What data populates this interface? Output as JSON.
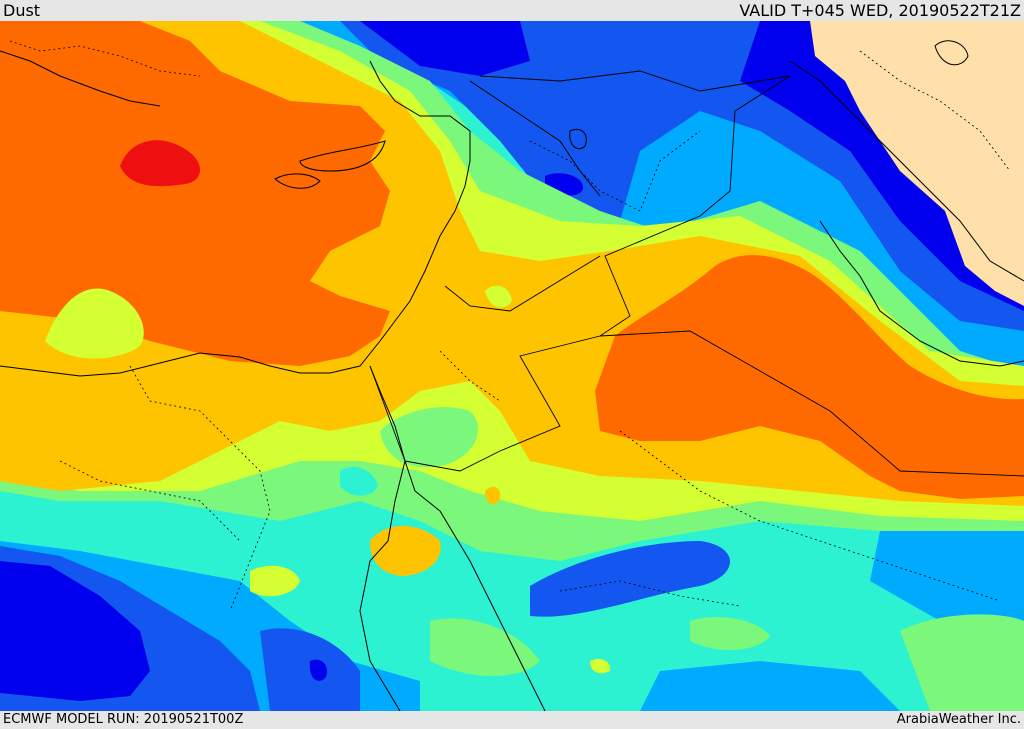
{
  "header": {
    "title": "Dust",
    "valid_time": "VALID T+045 WED, 20190522T21Z"
  },
  "footer": {
    "model_run": "ECMWF MODEL RUN: 20190521T00Z",
    "credit": "ArabiaWeather Inc."
  },
  "map": {
    "field": "dust",
    "region": "Eastern Mediterranean, Levant, Egypt, Arabian Peninsula",
    "palette": [
      "#0000ee",
      "#1456f0",
      "#00aaff",
      "#2df2d2",
      "#7bf77b",
      "#d4ff33",
      "#ffc400",
      "#ff6a00",
      "#ee1010"
    ],
    "land_color": "#ffdfaa"
  }
}
